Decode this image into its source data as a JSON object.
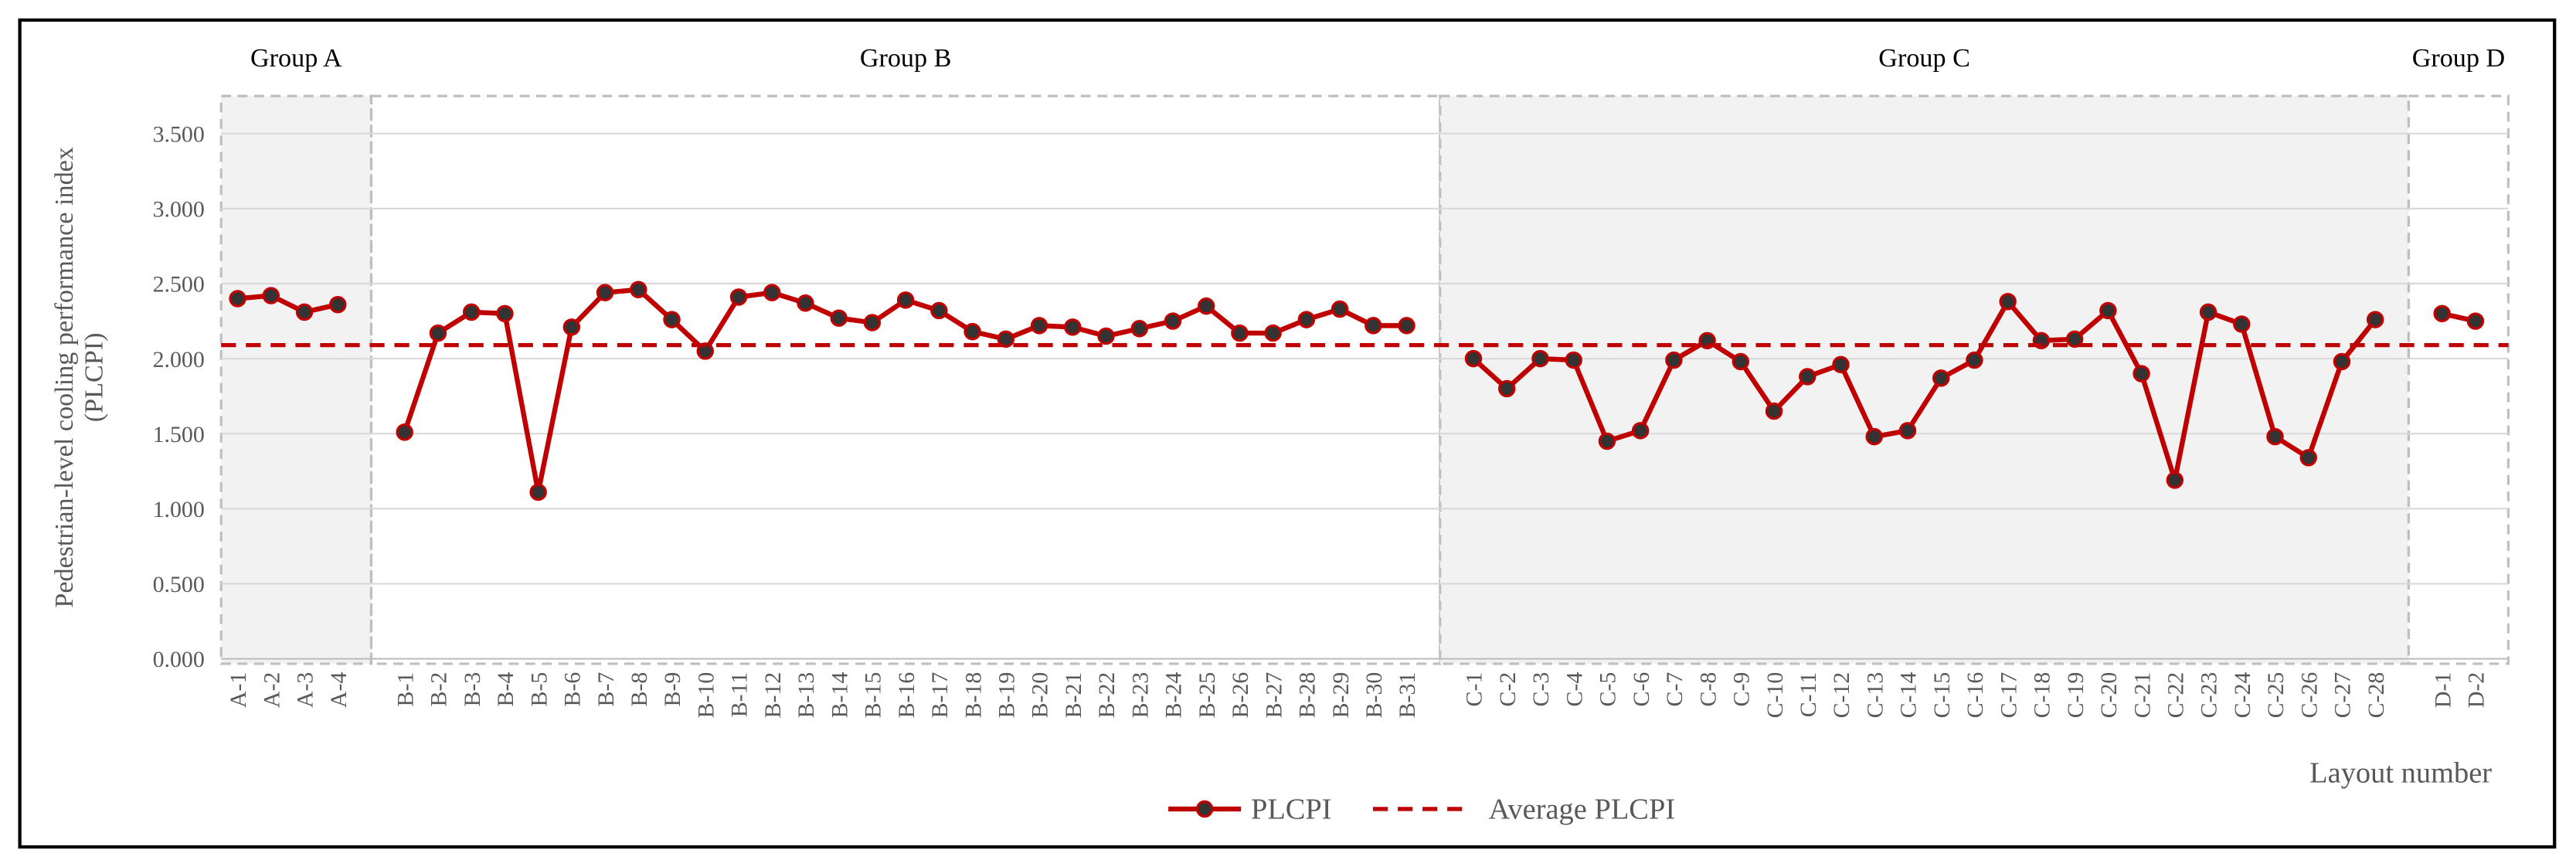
{
  "chart_data": {
    "type": "line",
    "ylabel": [
      "Pedestrian-level cooling performance index",
      "(PLCPI)"
    ],
    "xlabel": "Layout number",
    "categories": [
      "A-1",
      "A-2",
      "A-3",
      "A-4",
      null,
      "B-1",
      "B-2",
      "B-3",
      "B-4",
      "B-5",
      "B-6",
      "B-7",
      "B-8",
      "B-9",
      "B-10",
      "B-11",
      "B-12",
      "B-13",
      "B-14",
      "B-15",
      "B-16",
      "B-17",
      "B-18",
      "B-19",
      "B-20",
      "B-21",
      "B-22",
      "B-23",
      "B-24",
      "B-25",
      "B-26",
      "B-27",
      "B-28",
      "B-29",
      "B-30",
      "B-31",
      null,
      "C-1",
      "C-2",
      "C-3",
      "C-4",
      "C-5",
      "C-6",
      "C-7",
      "C-8",
      "C-9",
      "C-10",
      "C-11",
      "C-12",
      "C-13",
      "C-14",
      "C-15",
      "C-16",
      "C-17",
      "C-18",
      "C-19",
      "C-20",
      "C-21",
      "C-22",
      "C-23",
      "C-24",
      "C-25",
      "C-26",
      "C-27",
      "C-28",
      null,
      "D-1",
      "D-2"
    ],
    "series": [
      {
        "name": "PLCPI",
        "color": "#c00000",
        "values": [
          2.4,
          2.42,
          2.31,
          2.36,
          null,
          1.51,
          2.17,
          2.31,
          2.3,
          1.11,
          2.21,
          2.44,
          2.46,
          2.26,
          2.05,
          2.41,
          2.44,
          2.37,
          2.27,
          2.24,
          2.39,
          2.32,
          2.18,
          2.13,
          2.22,
          2.21,
          2.15,
          2.2,
          2.25,
          2.35,
          2.17,
          2.17,
          2.26,
          2.33,
          2.22,
          2.22,
          null,
          2.0,
          1.8,
          2.0,
          1.99,
          1.45,
          1.52,
          1.99,
          2.12,
          1.98,
          1.65,
          1.88,
          1.96,
          1.48,
          1.52,
          1.87,
          1.99,
          2.38,
          2.12,
          2.13,
          2.32,
          1.9,
          1.19,
          2.31,
          2.23,
          1.48,
          1.34,
          1.98,
          2.26,
          null,
          2.3,
          2.25
        ]
      },
      {
        "name": "Average PLCPI",
        "color": "#c00000",
        "dashed": true,
        "value": 2.09
      }
    ],
    "groups": [
      {
        "label": "Group A",
        "shaded": true
      },
      {
        "label": "Group B",
        "shaded": false
      },
      {
        "label": "Group C",
        "shaded": true
      },
      {
        "label": "Group D",
        "shaded": false
      }
    ],
    "ylim": [
      0,
      3.75
    ],
    "yticks": [
      {
        "value": 0,
        "label": "0.000"
      },
      {
        "value": 0.5,
        "label": "0.500"
      },
      {
        "value": 1,
        "label": "1.000"
      },
      {
        "value": 1.5,
        "label": "1.500"
      },
      {
        "value": 2,
        "label": "2.000"
      },
      {
        "value": 2.5,
        "label": "2.500"
      },
      {
        "value": 3,
        "label": "3.000"
      },
      {
        "value": 3.5,
        "label": "3.500"
      }
    ],
    "grid": true
  }
}
